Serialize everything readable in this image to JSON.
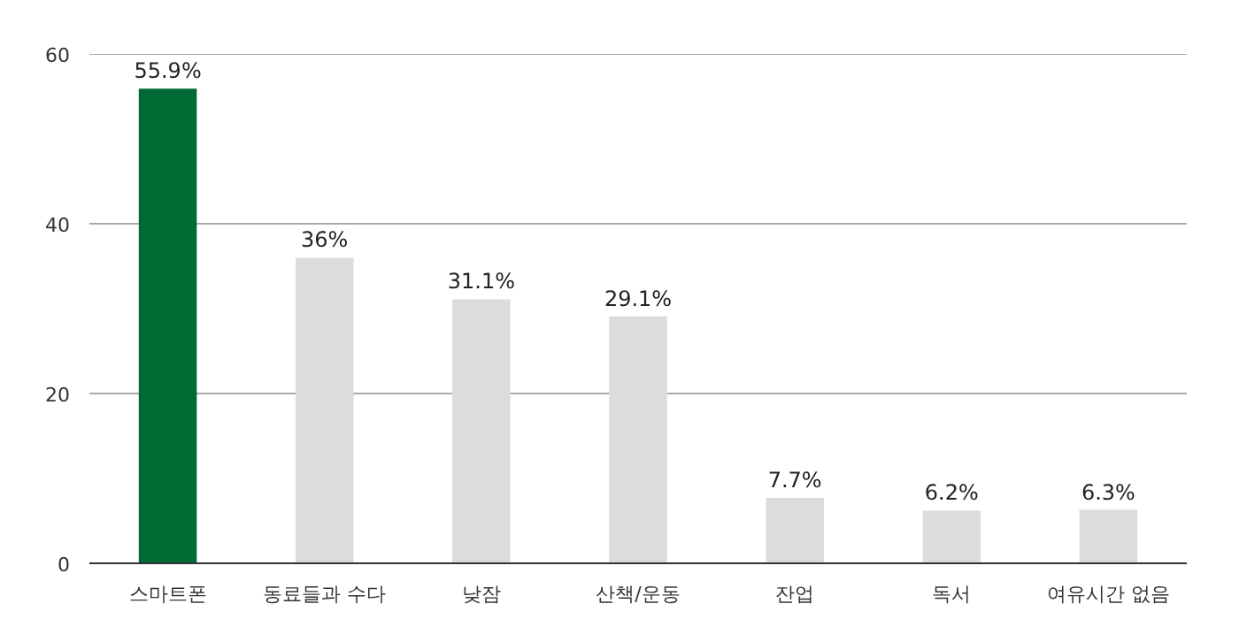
{
  "chart_data": {
    "type": "bar",
    "categories": [
      "스마트폰",
      "동료들과 수다",
      "낮잠",
      "산책/운동",
      "잔업",
      "독서",
      "여유시간 없음"
    ],
    "values": [
      55.9,
      36,
      31.1,
      29.1,
      7.7,
      6.2,
      6.3
    ],
    "colors": [
      "#006a35",
      "#dcdcdc",
      "#dcdcdc",
      "#dcdcdc",
      "#dcdcdc",
      "#dcdcdc",
      "#dcdcdc"
    ],
    "value_labels": [
      "55.9%",
      "36%",
      "31.1%",
      "29.1%",
      "7.7%",
      "6.2%",
      "6.3%"
    ],
    "ylim": [
      0,
      60
    ],
    "yticks": [
      0,
      20,
      40,
      60
    ],
    "grid": "y"
  }
}
